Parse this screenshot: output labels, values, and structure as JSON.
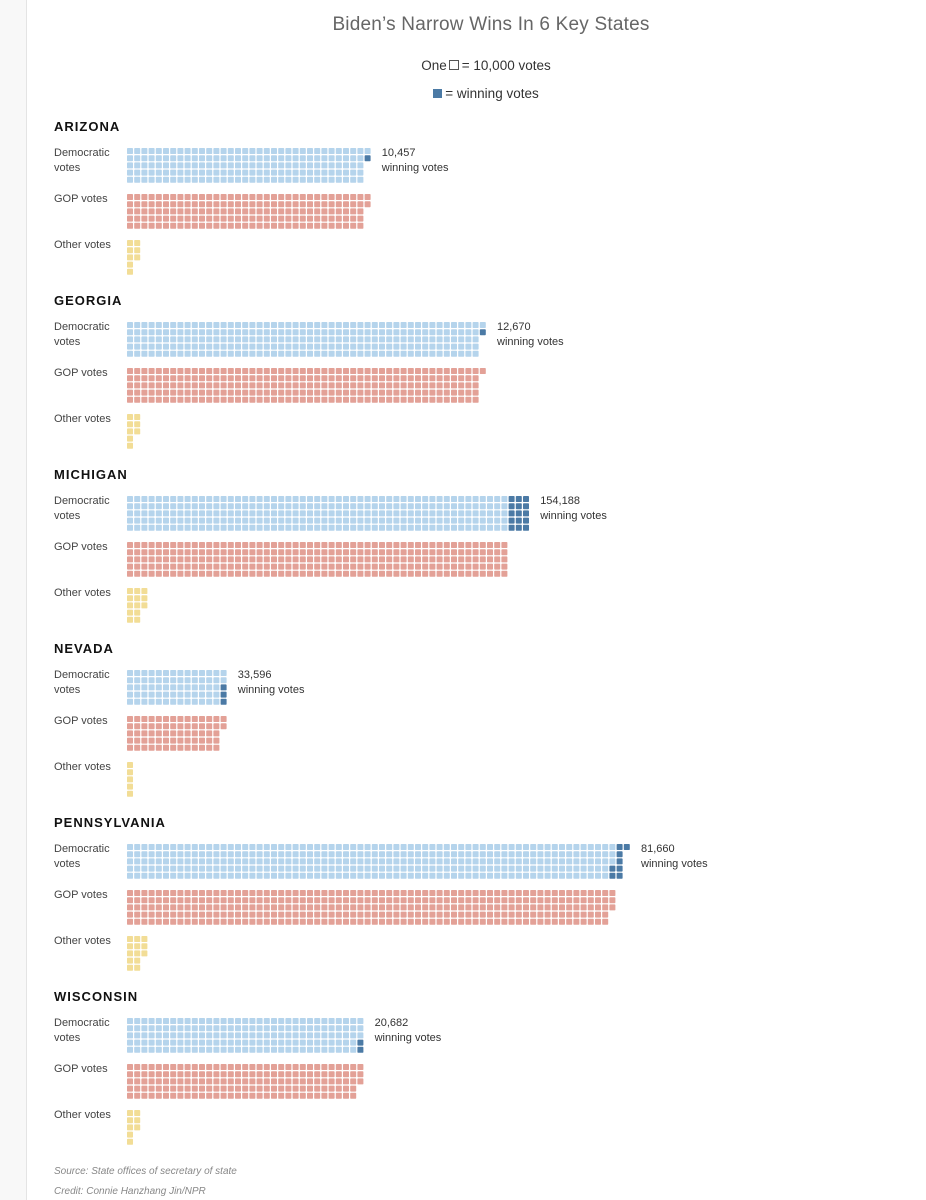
{
  "chart_data": {
    "type": "waffle",
    "title": "Biden’s Narrow Wins In 6 Key States",
    "unit_legend": {
      "prefix": "One",
      "suffix": "= 10,000 votes"
    },
    "winning_legend": "= winning votes",
    "votes_per_square": 10000,
    "row_labels": {
      "dem": "Democratic votes",
      "gop": "GOP votes",
      "other": "Other votes"
    },
    "annotation_suffix": "winning votes",
    "colors": {
      "dem": "#b5d4ec",
      "gop": "#e3a197",
      "other": "#f2dd96",
      "win": "#4b7aa5"
    },
    "states": [
      {
        "name": "ARIZONA",
        "dem_squares": 167,
        "gop_squares": 167,
        "other_squares": 8,
        "win_squares": 1,
        "winning_votes": "10,457"
      },
      {
        "name": "GEORGIA",
        "dem_squares": 247,
        "gop_squares": 246,
        "other_squares": 8,
        "win_squares": 1,
        "winning_votes": "12,670"
      },
      {
        "name": "MICHIGAN",
        "dem_squares": 280,
        "gop_squares": 265,
        "other_squares": 13,
        "win_squares": 15,
        "winning_votes": "154,188"
      },
      {
        "name": "NEVADA",
        "dem_squares": 70,
        "gop_squares": 67,
        "other_squares": 5,
        "win_squares": 3,
        "winning_votes": "33,596"
      },
      {
        "name": "PENNSYLVANIA",
        "dem_squares": 346,
        "gop_squares": 338,
        "other_squares": 13,
        "win_squares": 8,
        "winning_votes": "81,660"
      },
      {
        "name": "WISCONSIN",
        "dem_squares": 165,
        "gop_squares": 163,
        "other_squares": 8,
        "win_squares": 2,
        "winning_votes": "20,682"
      }
    ]
  },
  "footer": {
    "source": "Source: State offices of secretary of state",
    "credit": "Credit: Connie Hanzhang Jin/NPR"
  }
}
